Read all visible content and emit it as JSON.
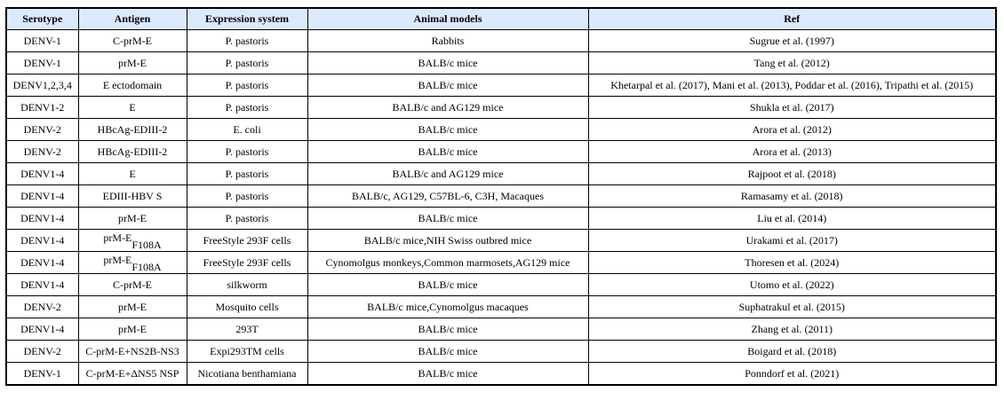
{
  "headers": {
    "serotype": "Serotype",
    "antigen": "Antigen",
    "expression": "Expression system",
    "animal": "Animal models",
    "ref": "Ref"
  },
  "rows": [
    {
      "serotype": "DENV-1",
      "antigen": "C-prM-E",
      "expression": "P. pastoris",
      "animal": "Rabbits",
      "ref": "Sugrue et al. (1997)"
    },
    {
      "serotype": "DENV-1",
      "antigen": "prM-E",
      "expression": "P. pastoris",
      "animal": "BALB/c mice",
      "ref": "Tang et al. (2012)"
    },
    {
      "serotype": "DENV1,2,3,4",
      "antigen": "E ectodomain",
      "expression": "P. pastoris",
      "animal": "BALB/c mice",
      "ref": "Khetarpal et al. (2017), Mani et al. (2013), Poddar et al. (2016), Tripathi et al. (2015)"
    },
    {
      "serotype": "DENV1-2",
      "antigen": "E",
      "expression": "P. pastoris",
      "animal": "BALB/c and AG129 mice",
      "ref": "Shukla et al. (2017)"
    },
    {
      "serotype": "DENV-2",
      "antigen": "HBcAg-EDIII-2",
      "expression": "E. coli",
      "animal": "BALB/c mice",
      "ref": "Arora et al. (2012)"
    },
    {
      "serotype": "DENV-2",
      "antigen": "HBcAg-EDIII-2",
      "expression": "P. pastoris",
      "animal": "BALB/c mice",
      "ref": "Arora et al. (2013)"
    },
    {
      "serotype": "DENV1-4",
      "antigen": "E",
      "expression": "P. pastoris",
      "animal": "BALB/c and AG129 mice",
      "ref": "Rajpoot et al. (2018)"
    },
    {
      "serotype": "DENV1-4",
      "antigen": "EDIII-HBV S",
      "expression": "P. pastoris",
      "animal": "BALB/c, AG129, C57BL-6, C3H, Macaques",
      "ref": "Ramasamy et al. (2018)"
    },
    {
      "serotype": "DENV1-4",
      "antigen": "prM-E",
      "expression": "P. pastoris",
      "animal": "BALB/c mice",
      "ref": "Liu et al. (2014)"
    },
    {
      "serotype": "DENV1-4",
      "antigen": "prM-E",
      "antigen_sub": "F108A",
      "expression": "FreeStyle 293F cells",
      "animal": "BALB/c mice,NIH Swiss outbred mice",
      "ref": "Urakami et al. (2017)"
    },
    {
      "serotype": "DENV1-4",
      "antigen": "prM-E",
      "antigen_sub": "F108A",
      "expression": "FreeStyle 293F cells",
      "animal": "Cynomolgus monkeys,Common marmosets,AG129 mice",
      "ref": "Thoresen et al. (2024)"
    },
    {
      "serotype": "DENV1-4",
      "antigen": "C-prM-E",
      "expression": "silkworm",
      "animal": "BALB/c mice",
      "ref": "Utomo et al. (2022)"
    },
    {
      "serotype": "DENV-2",
      "antigen": "prM-E",
      "expression": "Mosquito cells",
      "animal": "BALB/c mice,Cynomolgus macaques",
      "ref": "Suphatrakul et al. (2015)"
    },
    {
      "serotype": "DENV1-4",
      "antigen": "prM-E",
      "expression": "293T",
      "animal": "BALB/c mice",
      "ref": "Zhang et al. (2011)"
    },
    {
      "serotype": "DENV-2",
      "antigen": "C-prM-E+NS2B-NS3",
      "expression": "Expi293TM cells",
      "animal": "BALB/c mice",
      "ref": "Boigard et al. (2018)"
    },
    {
      "serotype": "DENV-1",
      "antigen": "C-prM-E+ΔNS5 NSP",
      "expression": "Nicotiana benthamiana",
      "animal": "BALB/c mice",
      "ref": "Ponndorf et al. (2021)"
    }
  ]
}
